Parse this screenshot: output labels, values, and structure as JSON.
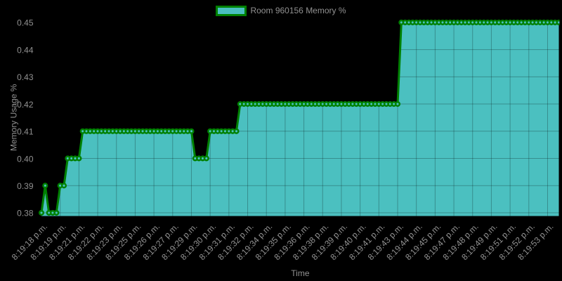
{
  "chart_data": {
    "type": "area",
    "legend": "Room 960156 Memory %",
    "xlabel": "Time",
    "ylabel": "Memory Usage %",
    "ylim": [
      0.38,
      0.45
    ],
    "y_tick_labels": [
      "0.45",
      "0.44",
      "0.43",
      "0.42",
      "0.41",
      "0.40",
      "0.39",
      "0.38"
    ],
    "y_ticks": [
      0.45,
      0.44,
      0.43,
      0.42,
      0.41,
      0.4,
      0.39,
      0.38
    ],
    "x_tick_labels": [
      "8:19:18 p.m.",
      "8:19:19 p.m.",
      "8:19:21 p.m.",
      "8:19:22 p.m.",
      "8:19:23 p.m.",
      "8:19:25 p.m.",
      "8:19:26 p.m.",
      "8:19:27 p.m.",
      "8:19:29 p.m.",
      "8:19:30 p.m.",
      "8:19:31 p.m.",
      "8:19:32 p.m.",
      "8:19:34 p.m.",
      "8:19:35 p.m.",
      "8:19:36 p.m.",
      "8:19:38 p.m.",
      "8:19:39 p.m.",
      "8:19:40 p.m.",
      "8:19:41 p.m.",
      "8:19:43 p.m.",
      "8:19:44 p.m.",
      "8:19:45 p.m.",
      "8:19:47 p.m.",
      "8:19:48 p.m.",
      "8:19:49 p.m.",
      "8:19:51 p.m.",
      "8:19:52 p.m.",
      "8:19:53 p.m."
    ],
    "points_per_tick": 5,
    "grid": true,
    "legend_position": "top",
    "series": [
      {
        "name": "Room 960156 Memory %",
        "values": [
          0.38,
          0.39,
          0.38,
          0.38,
          0.38,
          0.39,
          0.39,
          0.4,
          0.4,
          0.4,
          0.4,
          0.41,
          0.41,
          0.41,
          0.41,
          0.41,
          0.41,
          0.41,
          0.41,
          0.41,
          0.41,
          0.41,
          0.41,
          0.41,
          0.41,
          0.41,
          0.41,
          0.41,
          0.41,
          0.41,
          0.41,
          0.41,
          0.41,
          0.41,
          0.41,
          0.41,
          0.41,
          0.41,
          0.41,
          0.41,
          0.41,
          0.4,
          0.4,
          0.4,
          0.4,
          0.41,
          0.41,
          0.41,
          0.41,
          0.41,
          0.41,
          0.41,
          0.41,
          0.42,
          0.42,
          0.42,
          0.42,
          0.42,
          0.42,
          0.42,
          0.42,
          0.42,
          0.42,
          0.42,
          0.42,
          0.42,
          0.42,
          0.42,
          0.42,
          0.42,
          0.42,
          0.42,
          0.42,
          0.42,
          0.42,
          0.42,
          0.42,
          0.42,
          0.42,
          0.42,
          0.42,
          0.42,
          0.42,
          0.42,
          0.42,
          0.42,
          0.42,
          0.42,
          0.42,
          0.42,
          0.42,
          0.42,
          0.42,
          0.42,
          0.42,
          0.42,
          0.45,
          0.45,
          0.45,
          0.45,
          0.45,
          0.45,
          0.45,
          0.45,
          0.45,
          0.45,
          0.45,
          0.45,
          0.45,
          0.45,
          0.45,
          0.45,
          0.45,
          0.45,
          0.45,
          0.45,
          0.45,
          0.45,
          0.45,
          0.45,
          0.45,
          0.45,
          0.45,
          0.45,
          0.45,
          0.45,
          0.45,
          0.45,
          0.45,
          0.45,
          0.45,
          0.45,
          0.45,
          0.45,
          0.45,
          0.45,
          0.45,
          0.45,
          0.45
        ]
      }
    ],
    "colors": {
      "background": "#000000",
      "area_fill": "#4bc0c0",
      "line": "#008000",
      "marker_fill": "#4bc0c0",
      "marker_stroke": "#008000",
      "grid": "rgba(0,0,0,0.26)",
      "label": "#919191"
    }
  }
}
